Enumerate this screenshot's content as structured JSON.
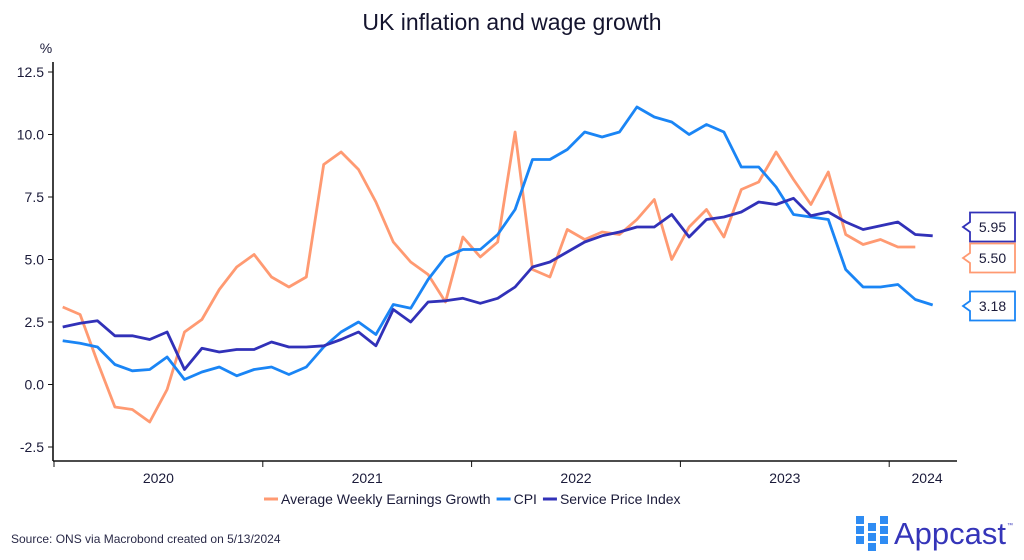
{
  "chart_data": {
    "type": "line",
    "title": "UK inflation and wage growth",
    "ylabel": "%",
    "xlabel": "",
    "ylim": [
      -2.5,
      12.5
    ],
    "yticks": [
      -2.5,
      0.0,
      2.5,
      5.0,
      7.5,
      10.0,
      12.5
    ],
    "ytick_labels": [
      "-2.5",
      "0.0",
      "2.5",
      "5.0",
      "7.5",
      "10.0",
      "12.5"
    ],
    "xrange": [
      "2020-01",
      "2024-04"
    ],
    "xtick_labels": [
      "2020",
      "2021",
      "2022",
      "2023",
      "2024"
    ],
    "grid": false,
    "legend_position": "bottom-center",
    "x_start": "2020-01",
    "x_frequency": "monthly",
    "series": [
      {
        "name": "Average Weekly Earnings Growth",
        "color": "#ff9a72",
        "start": "2020-01",
        "values": [
          3.1,
          2.8,
          0.9,
          -0.9,
          -1.0,
          -1.5,
          -0.2,
          2.1,
          2.6,
          3.8,
          4.7,
          5.2,
          4.3,
          3.9,
          4.3,
          8.8,
          9.3,
          8.6,
          7.3,
          5.7,
          4.9,
          4.4,
          3.3,
          5.9,
          5.1,
          5.7,
          10.1,
          4.6,
          4.3,
          6.2,
          5.8,
          6.1,
          6.0,
          6.6,
          7.4,
          5.0,
          6.3,
          7.0,
          5.9,
          7.8,
          8.1,
          9.3,
          8.2,
          7.2,
          8.5,
          6.0,
          5.6,
          5.8,
          5.5,
          5.5
        ],
        "end_label": "5.50"
      },
      {
        "name": "CPI",
        "color": "#1a85f5",
        "start": "2020-01",
        "values": [
          1.75,
          1.65,
          1.5,
          0.8,
          0.55,
          0.6,
          1.1,
          0.2,
          0.5,
          0.7,
          0.35,
          0.6,
          0.7,
          0.4,
          0.7,
          1.5,
          2.1,
          2.5,
          2.0,
          3.2,
          3.05,
          4.2,
          5.1,
          5.4,
          5.4,
          6.0,
          7.0,
          9.0,
          9.0,
          9.4,
          10.1,
          9.9,
          10.1,
          11.1,
          10.7,
          10.5,
          10.0,
          10.4,
          10.1,
          8.7,
          8.7,
          7.9,
          6.8,
          6.7,
          6.6,
          4.6,
          3.9,
          3.9,
          4.0,
          3.4,
          3.18
        ],
        "end_label": "3.18"
      },
      {
        "name": "Service Price Index",
        "color": "#3131b8",
        "start": "2020-01",
        "values": [
          2.3,
          2.45,
          2.55,
          1.95,
          1.95,
          1.8,
          2.1,
          0.6,
          1.45,
          1.3,
          1.4,
          1.4,
          1.7,
          1.5,
          1.5,
          1.55,
          1.8,
          2.1,
          1.55,
          3.0,
          2.5,
          3.3,
          3.35,
          3.45,
          3.25,
          3.45,
          3.9,
          4.7,
          4.9,
          5.3,
          5.7,
          5.95,
          6.1,
          6.3,
          6.3,
          6.8,
          5.9,
          6.6,
          6.7,
          6.9,
          7.3,
          7.2,
          7.45,
          6.75,
          6.9,
          6.5,
          6.2,
          6.35,
          6.5,
          6.0,
          5.95
        ],
        "end_label": "5.95"
      }
    ],
    "legend_order": [
      "Average Weekly Earnings Growth",
      "CPI",
      "Service Price Index"
    ]
  },
  "footer": {
    "source": "Source: ONS via Macrobond created on 5/13/2024",
    "brand": "Appcast",
    "brand_tm": "™",
    "brand_color": "#3535b9",
    "brand_icon_color": "#2f8cf3"
  },
  "icons": {
    "logo": "appcast-grid-logo-icon"
  }
}
